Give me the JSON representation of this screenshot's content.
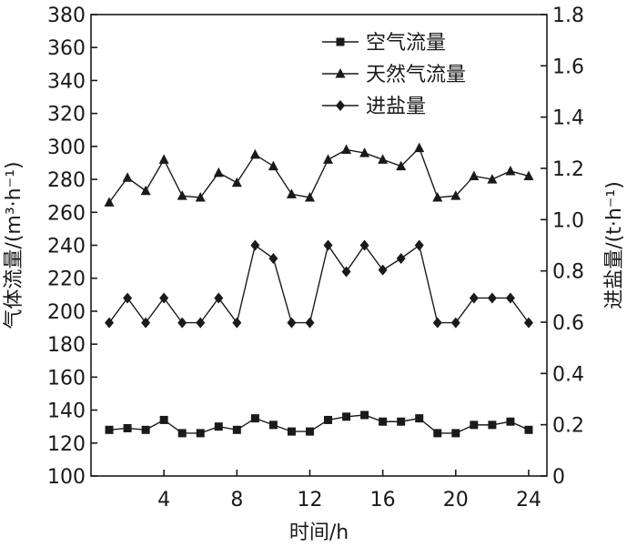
{
  "chart_data": {
    "type": "line",
    "title": "",
    "xlabel": "时间/h",
    "ylabel_left": "气体流量/(m³·h⁻¹)",
    "ylabel_right": "进盐量/(t·h⁻¹)",
    "xlim": [
      0,
      25
    ],
    "xticks": [
      4,
      8,
      12,
      16,
      20,
      24
    ],
    "ylim_left": [
      100,
      380
    ],
    "yticks_left": [
      100,
      120,
      140,
      160,
      180,
      200,
      220,
      240,
      260,
      280,
      300,
      320,
      340,
      360,
      380
    ],
    "ylim_right": [
      0,
      1.8
    ],
    "yticks_right": [
      "0",
      "0.2",
      "0.4",
      "0.6",
      "0.8",
      "1.0",
      "1.2",
      "1.4",
      "1.6",
      "1.8"
    ],
    "legend_position": "top-center",
    "grid": false,
    "x": [
      1,
      2,
      3,
      4,
      5,
      6,
      7,
      8,
      9,
      10,
      11,
      12,
      13,
      14,
      15,
      16,
      17,
      18,
      19,
      20,
      21,
      22,
      23,
      24
    ],
    "series": [
      {
        "name": "空气流量",
        "marker": "square",
        "axis": "left",
        "values": [
          128,
          129,
          128,
          134,
          126,
          126,
          130,
          128,
          135,
          131,
          127,
          127,
          134,
          136,
          137,
          133,
          133,
          135,
          126,
          126,
          131,
          131,
          133,
          128
        ]
      },
      {
        "name": "天然气流量",
        "marker": "triangle",
        "axis": "left",
        "values": [
          266,
          281,
          273,
          292,
          270,
          269,
          284,
          278,
          295,
          288,
          271,
          269,
          292,
          298,
          296,
          292,
          288,
          299,
          269,
          270,
          282,
          280,
          285,
          282
        ]
      },
      {
        "name": "进盐量",
        "marker": "diamond",
        "axis": "left",
        "values": [
          193,
          208,
          193,
          208,
          193,
          193,
          208,
          193,
          240,
          232,
          193,
          193,
          240,
          224,
          240,
          225,
          232,
          240,
          193,
          193,
          208,
          208,
          208,
          193
        ]
      }
    ]
  }
}
